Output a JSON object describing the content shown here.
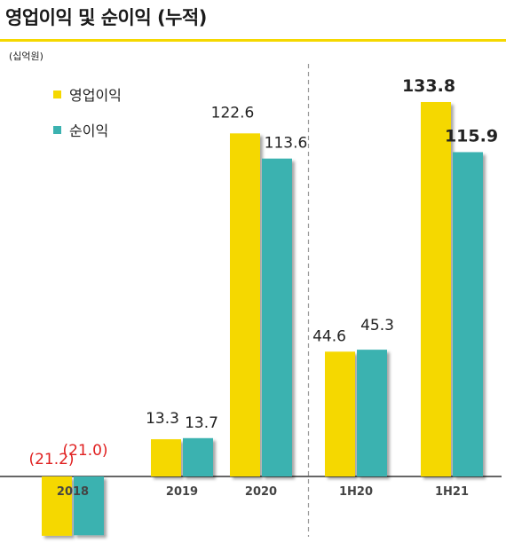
{
  "title": "영업이익 및 순이익 (누적)",
  "unit": "(십억원)",
  "colors": {
    "accent": "#f5d800",
    "operating": "#f5d800",
    "net": "#3bb2b0",
    "negative_label": "#e02020",
    "divider": "#9a9a9a"
  },
  "legend": [
    {
      "label": "영업이익",
      "color": "#f5d800"
    },
    {
      "label": "순이익",
      "color": "#3bb2b0"
    }
  ],
  "chart_data": {
    "type": "bar",
    "title": "영업이익 및 순이익 (누적)",
    "ylabel": "(십억원)",
    "categories": [
      "2018",
      "2019",
      "2020",
      "1H20",
      "1H21"
    ],
    "series": [
      {
        "name": "영업이익",
        "values": [
          -21.2,
          13.3,
          122.6,
          44.6,
          133.8
        ],
        "labels": [
          "(21.2)",
          "13.3",
          "122.6",
          "44.6",
          "133.8"
        ]
      },
      {
        "name": "순이익",
        "values": [
          -21.0,
          13.7,
          113.6,
          45.3,
          115.9
        ],
        "labels": [
          "(21.0)",
          "13.7",
          "113.6",
          "45.3",
          "115.9"
        ]
      }
    ],
    "ylim": [
      -21.2,
      133.8
    ],
    "grid": false,
    "legend_position": "top-left",
    "divider_after_category": "2020"
  }
}
